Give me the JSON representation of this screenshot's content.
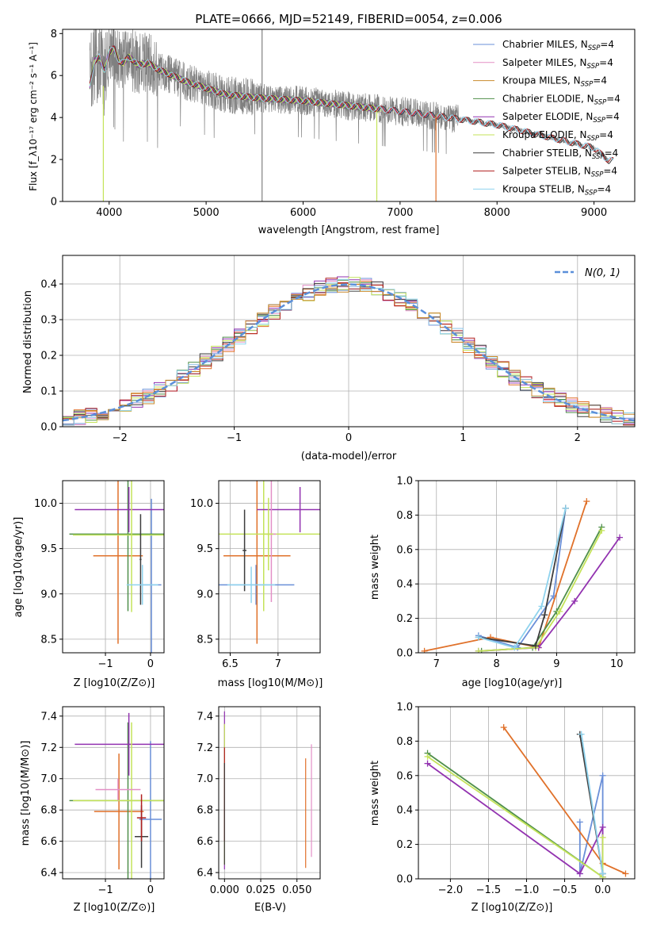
{
  "colors": {
    "Chabrier MILES": "#6a8fd8",
    "Salpeter MILES": "#e38fc6",
    "Kroupa MILES": "#c98a2c",
    "Chabrier ELODIE": "#4f8f4a",
    "Salpeter ELODIE": "#9232b0",
    "Kroupa ELODIE": "#c4e35a",
    "Chabrier STELIB": "#3d3d3d",
    "Salpeter STELIB": "#b11f1f",
    "Kroupa STELIB": "#8fd3ee",
    "orange": "#e0712a",
    "gaussian": "#5b8fd9",
    "observed": "#808080"
  },
  "chart_data": [
    {
      "id": "spectrum",
      "type": "line",
      "title": "PLATE=0666, MJD=52149, FIBERID=0054, z=0.006",
      "xlabel": "wavelength [Angstrom, rest frame]",
      "ylabel": "Flux [f_λ10⁻¹⁷ erg cm⁻² s⁻¹ A⁻¹]",
      "xlim": [
        3520,
        9420
      ],
      "ylim": [
        0,
        8.2
      ],
      "xticks": [
        4000,
        5000,
        6000,
        7000,
        8000,
        9000
      ],
      "yticks": [
        0,
        2,
        4,
        6,
        8
      ],
      "legend_position": "top-right",
      "series": [
        {
          "name": "Chabrier MILES, N_SSP=4",
          "label": "Chabrier MILES, N",
          "sub": "SSP",
          "suffix": "=4",
          "color_key": "Chabrier MILES",
          "xmax": 7400
        },
        {
          "name": "Salpeter MILES, N_SSP=4",
          "label": "Salpeter MILES, N",
          "sub": "SSP",
          "suffix": "=4",
          "color_key": "Salpeter MILES",
          "xmax": 7400
        },
        {
          "name": "Kroupa MILES, N_SSP=4",
          "label": "Kroupa MILES, N",
          "sub": "SSP",
          "suffix": "=4",
          "color_key": "Kroupa MILES",
          "xmax": 7400
        },
        {
          "name": "Chabrier ELODIE, N_SSP=4",
          "label": "Chabrier ELODIE, N",
          "sub": "SSP",
          "suffix": "=4",
          "color_key": "Chabrier ELODIE",
          "xmax": 6800
        },
        {
          "name": "Salpeter ELODIE, N_SSP=4",
          "label": "Salpeter ELODIE, N",
          "sub": "SSP",
          "suffix": "=4",
          "color_key": "Salpeter ELODIE",
          "xmax": 6800
        },
        {
          "name": "Kroupa ELODIE, N_SSP=4",
          "label": "Kroupa ELODIE, N",
          "sub": "SSP",
          "suffix": "=4",
          "color_key": "Kroupa ELODIE",
          "xmax": 6800
        },
        {
          "name": "Chabrier STELIB, N_SSP=4",
          "label": "Chabrier STELIB, N",
          "sub": "SSP",
          "suffix": "=4",
          "color_key": "Chabrier STELIB",
          "xmax": 9200
        },
        {
          "name": "Salpeter STELIB, N_SSP=4",
          "label": "Salpeter STELIB, N",
          "sub": "SSP",
          "suffix": "=4",
          "color_key": "Salpeter STELIB",
          "xmax": 9200
        },
        {
          "name": "Kroupa STELIB, N_SSP=4",
          "label": "Kroupa STELIB, N",
          "sub": "SSP",
          "suffix": "=4",
          "color_key": "Kroupa STELIB",
          "xmax": 9200
        }
      ],
      "continuum": {
        "x": [
          3800,
          3850,
          3900,
          3950,
          4000,
          4050,
          4100,
          4150,
          4200,
          4300,
          4400,
          4500,
          4600,
          4800,
          5000,
          5200,
          5500,
          6000,
          6500,
          7000,
          7500,
          8000,
          8500,
          9000,
          9150
        ],
        "y": [
          5.5,
          6.7,
          6.9,
          6.2,
          7.1,
          7.3,
          6.7,
          6.6,
          6.9,
          6.5,
          6.6,
          6.3,
          6.1,
          5.7,
          5.4,
          5.1,
          4.95,
          4.8,
          4.55,
          4.3,
          4.0,
          3.65,
          3.1,
          2.55,
          1.95
        ]
      }
    },
    {
      "id": "residuals",
      "type": "line",
      "xlabel": "(data-model)/error",
      "ylabel": "Normed distribution",
      "xlim": [
        -2.5,
        2.5
      ],
      "ylim": [
        0,
        0.48
      ],
      "xticks": [
        -2,
        -1,
        0,
        1,
        2
      ],
      "yticks": [
        0.0,
        0.1,
        0.2,
        0.3,
        0.4
      ],
      "grid": true,
      "legend_position": "top-right",
      "gaussian_label": "N(0, 1)",
      "gaussian": {
        "mean": 0,
        "sigma": 1
      },
      "histogram_bin_width": 0.1,
      "histogram_series": 10
    },
    {
      "id": "age-vs-Z",
      "type": "scatter",
      "xlabel": "Z [log10(Z/Z⊙)]",
      "ylabel": "age [log10(age/yr)]",
      "xlim": [
        -1.95,
        0.3
      ],
      "ylim": [
        8.35,
        10.25
      ],
      "xticks": [
        -1,
        0
      ],
      "yticks": [
        8.5,
        9.0,
        9.5,
        10.0
      ],
      "grid": true,
      "points": [
        {
          "x": 0.02,
          "y": 9.1,
          "xerr": 0.22,
          "yerr": 0.95,
          "c": "Chabrier MILES"
        },
        {
          "x": -0.72,
          "y": 9.42,
          "xerr": 0.55,
          "yerr": 0.97,
          "c": "orange"
        },
        {
          "x": -0.5,
          "y": 9.66,
          "xerr": 1.3,
          "yerr": 0.85,
          "c": "Chabrier ELODIE"
        },
        {
          "x": -0.48,
          "y": 9.93,
          "xerr": 1.2,
          "yerr": 0.25,
          "c": "Salpeter ELODIE"
        },
        {
          "x": -0.42,
          "y": 9.65,
          "xerr": 1.3,
          "yerr": 0.85,
          "c": "Kroupa ELODIE"
        },
        {
          "x": -0.22,
          "y": 9.38,
          "xerr": 0.02,
          "yerr": 0.5,
          "c": "Chabrier STELIB"
        },
        {
          "x": -0.18,
          "y": 9.1,
          "xerr": 0.35,
          "yerr": 0.22,
          "c": "Kroupa STELIB"
        }
      ]
    },
    {
      "id": "age-vs-mass",
      "type": "scatter",
      "xlabel": "mass [log10(M/M⊙)]",
      "ylabel": "",
      "xlim": [
        6.38,
        7.44
      ],
      "ylim": [
        8.35,
        10.25
      ],
      "xticks": [
        6.5,
        7.0
      ],
      "yticks": [
        8.5,
        9.0,
        9.5,
        10.0
      ],
      "grid": true,
      "points": [
        {
          "x": 6.77,
          "y": 9.1,
          "xerr": 0.4,
          "yerr": 0.22,
          "c": "Chabrier MILES"
        },
        {
          "x": 6.78,
          "y": 9.42,
          "xerr": 0.35,
          "yerr": 0.97,
          "c": "orange"
        },
        {
          "x": 6.85,
          "y": 9.66,
          "xerr": 0.6,
          "yerr": 0.85,
          "c": "Kroupa ELODIE"
        },
        {
          "x": 7.23,
          "y": 9.93,
          "xerr": 0.45,
          "yerr": 0.25,
          "c": "Salpeter ELODIE"
        },
        {
          "x": 6.93,
          "y": 9.66,
          "xerr": 0.05,
          "yerr": 0.75,
          "c": "Salpeter MILES"
        },
        {
          "x": 6.65,
          "y": 9.48,
          "xerr": 0.02,
          "yerr": 0.45,
          "c": "Chabrier STELIB"
        },
        {
          "x": 6.72,
          "y": 9.1,
          "xerr": 0.25,
          "yerr": 0.2,
          "c": "Kroupa STELIB"
        },
        {
          "x": 6.9,
          "y": 9.66,
          "xerr": 0.05,
          "yerr": 0.4,
          "c": "Kroupa ELODIE"
        }
      ]
    },
    {
      "id": "weight-vs-age",
      "type": "line",
      "xlabel": "age [log10(age/yr)]",
      "ylabel": "mass weight",
      "xlim": [
        6.7,
        10.3
      ],
      "ylim": [
        0,
        1.0
      ],
      "xticks": [
        7,
        8,
        9,
        10
      ],
      "yticks": [
        0.0,
        0.2,
        0.4,
        0.6,
        0.8,
        1.0
      ],
      "grid": true,
      "series": [
        {
          "c": "Chabrier MILES",
          "x": [
            7.7,
            8.35,
            8.95,
            9.15
          ],
          "y": [
            0.1,
            0.03,
            0.33,
            0.84
          ]
        },
        {
          "c": "orange",
          "x": [
            6.8,
            7.9,
            8.7,
            9.5
          ],
          "y": [
            0.01,
            0.09,
            0.03,
            0.88
          ]
        },
        {
          "c": "Chabrier ELODIE",
          "x": [
            7.75,
            8.6,
            9.0,
            9.75
          ],
          "y": [
            0.01,
            0.03,
            0.24,
            0.73
          ]
        },
        {
          "c": "Salpeter ELODIE",
          "x": [
            7.7,
            8.7,
            9.3,
            10.05
          ],
          "y": [
            0.01,
            0.03,
            0.3,
            0.67
          ]
        },
        {
          "c": "Kroupa ELODIE",
          "x": [
            7.7,
            8.65,
            9.05,
            9.75
          ],
          "y": [
            0.01,
            0.03,
            0.24,
            0.71
          ]
        },
        {
          "c": "Chabrier STELIB",
          "x": [
            7.7,
            8.65,
            8.8,
            9.15
          ],
          "y": [
            0.09,
            0.04,
            0.22,
            0.84
          ]
        },
        {
          "c": "Kroupa STELIB",
          "x": [
            7.7,
            8.3,
            8.75,
            9.15
          ],
          "y": [
            0.09,
            0.03,
            0.27,
            0.84
          ]
        }
      ]
    },
    {
      "id": "mass-vs-Z",
      "type": "scatter",
      "xlabel": "Z [log10(Z/Z⊙)]",
      "ylabel": "mass [log10(M/M⊙)]",
      "xlim": [
        -1.95,
        0.3
      ],
      "ylim": [
        6.36,
        7.46
      ],
      "xticks": [
        -1,
        0
      ],
      "yticks": [
        6.4,
        6.6,
        6.8,
        7.0,
        7.2,
        7.4
      ],
      "grid": true,
      "points": [
        {
          "x": 0.0,
          "y": 6.74,
          "xerr": 0.25,
          "yerr": 0.5,
          "c": "Chabrier MILES"
        },
        {
          "x": -0.7,
          "y": 6.79,
          "xerr": 0.55,
          "yerr": 0.37,
          "c": "orange"
        },
        {
          "x": -0.5,
          "y": 6.86,
          "xerr": 1.3,
          "yerr": 0.5,
          "c": "Chabrier ELODIE"
        },
        {
          "x": -0.48,
          "y": 7.22,
          "xerr": 1.2,
          "yerr": 0.2,
          "c": "Salpeter ELODIE"
        },
        {
          "x": -0.42,
          "y": 6.86,
          "xerr": 1.3,
          "yerr": 0.5,
          "c": "Kroupa ELODIE"
        },
        {
          "x": -0.72,
          "y": 6.93,
          "xerr": 0.5,
          "yerr": 0.07,
          "c": "Salpeter MILES"
        },
        {
          "x": -0.2,
          "y": 6.63,
          "xerr": 0.15,
          "yerr": 0.2,
          "c": "Chabrier STELIB"
        },
        {
          "x": -0.2,
          "y": 6.75,
          "xerr": 0.1,
          "yerr": 0.15,
          "c": "Salpeter STELIB"
        }
      ]
    },
    {
      "id": "mass-vs-EBV",
      "type": "scatter",
      "xlabel": "E(B-V)",
      "ylabel": "",
      "xlim": [
        -0.004,
        0.066
      ],
      "ylim": [
        6.36,
        7.46
      ],
      "xticks": [
        0.0,
        0.025,
        0.05
      ],
      "yticks": [
        6.4,
        6.6,
        6.8,
        7.0,
        7.2,
        7.4
      ],
      "grid": true,
      "vsegments": [
        {
          "x": 0.0,
          "y0": 6.42,
          "y1": 7.43,
          "c": "Salpeter ELODIE"
        },
        {
          "x": 0.0,
          "y0": 6.45,
          "y1": 7.35,
          "c": "Kroupa ELODIE"
        },
        {
          "x": 0.0,
          "y0": 6.6,
          "y1": 7.2,
          "c": "Salpeter STELIB"
        },
        {
          "x": 0.0,
          "y0": 6.45,
          "y1": 7.1,
          "c": "Chabrier STELIB"
        },
        {
          "x": 0.056,
          "y0": 6.43,
          "y1": 7.13,
          "c": "orange"
        },
        {
          "x": 0.06,
          "y0": 6.5,
          "y1": 7.22,
          "c": "Salpeter MILES"
        }
      ]
    },
    {
      "id": "weight-vs-Z",
      "type": "line",
      "xlabel": "Z [log10(Z/Z⊙)]",
      "ylabel": "mass weight",
      "xlim": [
        -2.42,
        0.42
      ],
      "ylim": [
        0,
        1.0
      ],
      "xticks": [
        -2.0,
        -1.5,
        -1.0,
        -0.5,
        0.0
      ],
      "yticks": [
        0.0,
        0.2,
        0.4,
        0.6,
        0.8,
        1.0
      ],
      "grid": true,
      "series": [
        {
          "c": "Chabrier MILES",
          "x": [
            -0.3,
            -0.3,
            0.0,
            0.0
          ],
          "y": [
            0.33,
            0.03,
            0.6,
            0.03
          ]
        },
        {
          "c": "orange",
          "x": [
            -1.3,
            0.0,
            0.3
          ],
          "y": [
            0.88,
            0.09,
            0.03
          ]
        },
        {
          "c": "Chabrier ELODIE",
          "x": [
            -2.3,
            0.0
          ],
          "y": [
            0.73,
            0.01
          ]
        },
        {
          "c": "Salpeter ELODIE",
          "x": [
            -2.3,
            -0.3,
            0.0,
            0.0
          ],
          "y": [
            0.67,
            0.03,
            0.3,
            0.01
          ]
        },
        {
          "c": "Kroupa ELODIE",
          "x": [
            -2.3,
            0.0,
            0.0
          ],
          "y": [
            0.71,
            0.01,
            0.24
          ]
        },
        {
          "c": "Chabrier STELIB",
          "x": [
            -0.3,
            0.0
          ],
          "y": [
            0.84,
            0.03
          ]
        },
        {
          "c": "Kroupa STELIB",
          "x": [
            -0.28,
            0.0
          ],
          "y": [
            0.84,
            0.03
          ]
        }
      ]
    }
  ]
}
